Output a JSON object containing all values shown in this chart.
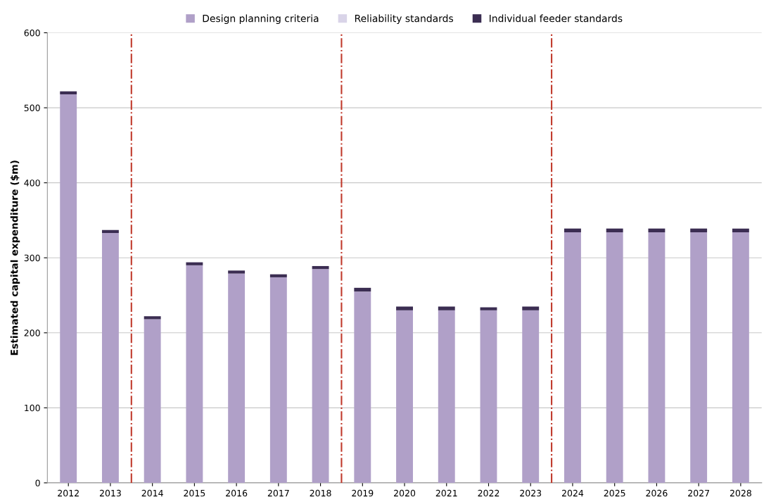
{
  "chart_data": {
    "type": "bar",
    "stacked": true,
    "ylabel": "Estimated capital expenditure ($m)",
    "categories": [
      "2012",
      "2013",
      "2014",
      "2015",
      "2016",
      "2017",
      "2018",
      "2019",
      "2020",
      "2021",
      "2022",
      "2023",
      "2024",
      "2025",
      "2026",
      "2027",
      "2028"
    ],
    "series": [
      {
        "name": "Design planning criteria",
        "color": "#b0a0c8",
        "values": [
          518,
          333,
          218,
          290,
          279,
          274,
          285,
          255,
          230,
          230,
          230,
          230,
          334,
          334,
          334,
          334,
          334
        ]
      },
      {
        "name": "Reliability standards",
        "color": "#d9d4e8",
        "values": [
          0,
          0,
          0,
          0,
          0,
          0,
          0,
          0,
          0,
          0,
          0,
          0,
          0,
          0,
          0,
          0,
          0
        ]
      },
      {
        "name": "Individual feeder standards",
        "color": "#3b2d52",
        "values": [
          4,
          4,
          4,
          4,
          4,
          4,
          4,
          5,
          5,
          5,
          4,
          5,
          5,
          5,
          5,
          5,
          5
        ]
      }
    ],
    "ylim": [
      0,
      600
    ],
    "yticks": [
      0,
      100,
      200,
      300,
      400,
      500,
      600
    ],
    "grid": "y",
    "legend": "top"
  }
}
